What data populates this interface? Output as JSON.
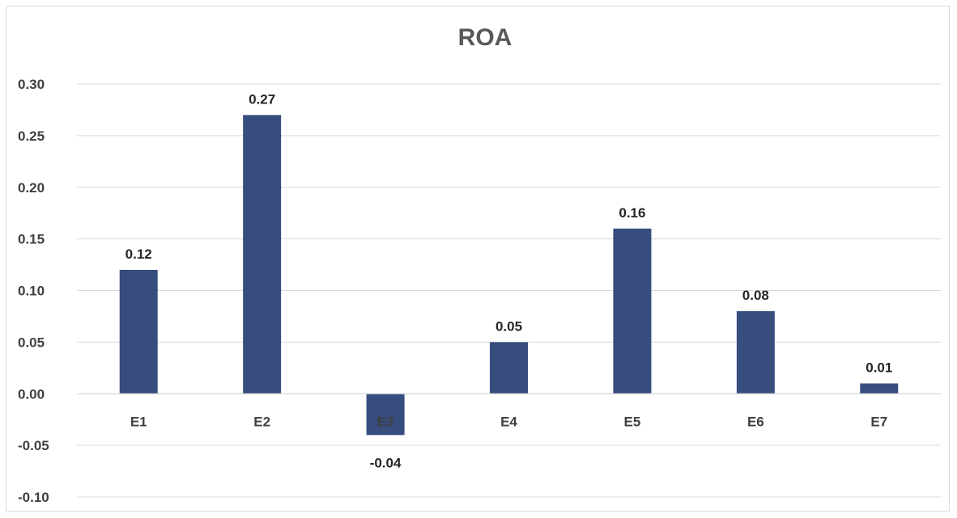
{
  "chart_data": {
    "type": "bar",
    "title": "ROA",
    "xlabel": "",
    "ylabel": "",
    "categories": [
      "E1",
      "E2",
      "E3",
      "E4",
      "E5",
      "E6",
      "E7"
    ],
    "values": [
      0.12,
      0.27,
      -0.04,
      0.05,
      0.16,
      0.08,
      0.01
    ],
    "data_labels": [
      "0.12",
      "0.27",
      "-0.04",
      "0.05",
      "0.16",
      "0.08",
      "0.01"
    ],
    "ylim": [
      -0.1,
      0.3
    ],
    "yticks": [
      0.3,
      0.25,
      0.2,
      0.15,
      0.1,
      0.05,
      0.0,
      -0.05,
      -0.1
    ],
    "ytick_labels": [
      "0.30",
      "0.25",
      "0.20",
      "0.15",
      "0.10",
      "0.05",
      "0.00",
      "-0.05",
      "-0.10"
    ],
    "grid": true,
    "legend": "none",
    "colors": {
      "bar": "#364d7e",
      "grid": "#d9d9d9",
      "text": "#404040",
      "title": "#595959"
    }
  }
}
